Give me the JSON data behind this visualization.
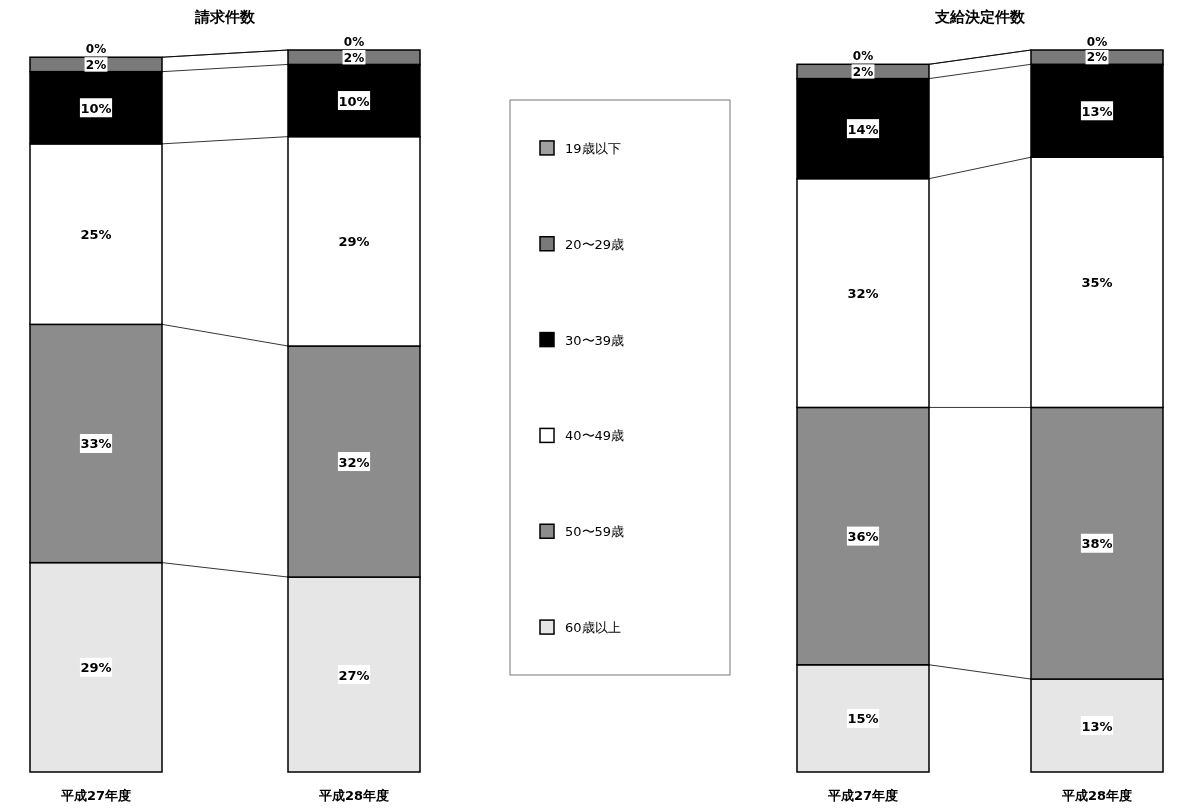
{
  "chart_data": [
    {
      "type": "bar",
      "stacked": true,
      "title": "請求件数",
      "categories": [
        "平成27年度",
        "平成28年度"
      ],
      "legend": "right",
      "series": [
        {
          "name": "60歳以上",
          "color": "#e6e6e6",
          "values": [
            29,
            27
          ],
          "value_labels": [
            "29%",
            "27%"
          ]
        },
        {
          "name": "50〜59歳",
          "color": "#8c8c8c",
          "values": [
            33,
            32
          ],
          "value_labels": [
            "33%",
            "32%"
          ]
        },
        {
          "name": "40〜49歳",
          "color": "#ffffff",
          "values": [
            25,
            29
          ],
          "value_labels": [
            "25%",
            "29%"
          ]
        },
        {
          "name": "30〜39歳",
          "color": "#000000",
          "values": [
            10,
            10
          ],
          "value_labels": [
            "10%",
            "10%"
          ]
        },
        {
          "name": "20〜29歳",
          "color": "#7a7a7a",
          "values": [
            2,
            2
          ],
          "value_labels": [
            "2%",
            "2%"
          ]
        },
        {
          "name": "19歳以下",
          "color": "#a0a0a0",
          "values": [
            0,
            0
          ],
          "value_labels": [
            "0%",
            "0%"
          ]
        }
      ]
    },
    {
      "type": "bar",
      "stacked": true,
      "title": "支給決定件数",
      "categories": [
        "平成27年度",
        "平成28年度"
      ],
      "series": [
        {
          "color": "#e6e6e6",
          "values": [
            15,
            13
          ],
          "value_labels": [
            "15%",
            "13%"
          ]
        },
        {
          "color": "#8c8c8c",
          "values": [
            36,
            38
          ],
          "value_labels": [
            "36%",
            "38%"
          ]
        },
        {
          "color": "#ffffff",
          "values": [
            32,
            35
          ],
          "value_labels": [
            "32%",
            "35%"
          ]
        },
        {
          "color": "#000000",
          "values": [
            14,
            13
          ],
          "value_labels": [
            "14%",
            "13%"
          ]
        },
        {
          "color": "#7a7a7a",
          "values": [
            2,
            2
          ],
          "value_labels": [
            "2%",
            "2%"
          ]
        },
        {
          "color": "#a0a0a0",
          "values": [
            0,
            0
          ],
          "value_labels": [
            "0%",
            "0%"
          ]
        }
      ]
    }
  ]
}
